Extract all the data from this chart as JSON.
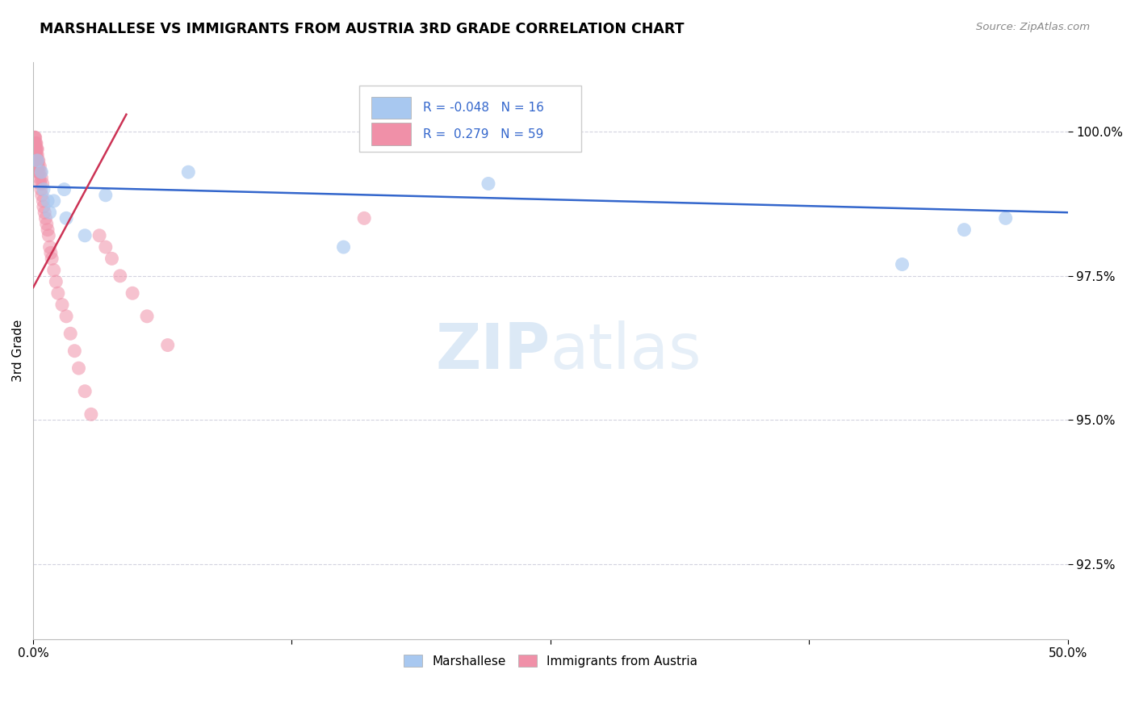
{
  "title": "MARSHALLESE VS IMMIGRANTS FROM AUSTRIA 3RD GRADE CORRELATION CHART",
  "source_text": "Source: ZipAtlas.com",
  "ylabel": "3rd Grade",
  "xlim": [
    0.0,
    50.0
  ],
  "ylim": [
    91.2,
    101.2
  ],
  "yticks": [
    92.5,
    95.0,
    97.5,
    100.0
  ],
  "ytick_labels": [
    "92.5%",
    "95.0%",
    "97.5%",
    "100.0%"
  ],
  "blue_label": "Marshallese",
  "pink_label": "Immigrants from Austria",
  "blue_R": "-0.048",
  "blue_N": "16",
  "pink_R": "0.279",
  "pink_N": "59",
  "blue_color": "#A8C8F0",
  "pink_color": "#F090A8",
  "blue_line_color": "#3366CC",
  "pink_line_color": "#CC3355",
  "watermark_zip": "ZIP",
  "watermark_atlas": "atlas",
  "blue_scatter_x": [
    0.2,
    0.4,
    0.5,
    0.7,
    0.8,
    1.0,
    1.5,
    1.6,
    2.5,
    3.5,
    7.5,
    15.0,
    22.0,
    42.0,
    45.0,
    47.0
  ],
  "blue_scatter_y": [
    99.5,
    99.3,
    99.0,
    98.8,
    98.6,
    98.8,
    99.0,
    98.5,
    98.2,
    98.9,
    99.3,
    98.0,
    99.1,
    97.7,
    98.3,
    98.5
  ],
  "pink_scatter_x": [
    0.05,
    0.07,
    0.08,
    0.09,
    0.1,
    0.1,
    0.11,
    0.12,
    0.13,
    0.14,
    0.15,
    0.15,
    0.16,
    0.17,
    0.18,
    0.19,
    0.2,
    0.2,
    0.22,
    0.24,
    0.25,
    0.26,
    0.28,
    0.3,
    0.32,
    0.34,
    0.36,
    0.38,
    0.4,
    0.42,
    0.45,
    0.48,
    0.5,
    0.55,
    0.6,
    0.65,
    0.7,
    0.75,
    0.8,
    0.85,
    0.9,
    1.0,
    1.1,
    1.2,
    1.4,
    1.6,
    1.8,
    2.0,
    2.2,
    2.5,
    2.8,
    3.2,
    3.5,
    3.8,
    4.2,
    4.8,
    5.5,
    6.5,
    16.0
  ],
  "pink_scatter_y": [
    99.9,
    99.8,
    99.9,
    99.7,
    99.8,
    99.9,
    99.7,
    99.8,
    99.6,
    99.5,
    99.7,
    99.8,
    99.6,
    99.7,
    99.5,
    99.4,
    99.6,
    99.7,
    99.5,
    99.3,
    99.4,
    99.5,
    99.3,
    99.2,
    99.4,
    99.1,
    99.3,
    99.0,
    99.2,
    98.9,
    99.1,
    98.8,
    98.7,
    98.6,
    98.5,
    98.4,
    98.3,
    98.2,
    98.0,
    97.9,
    97.8,
    97.6,
    97.4,
    97.2,
    97.0,
    96.8,
    96.5,
    96.2,
    95.9,
    95.5,
    95.1,
    98.2,
    98.0,
    97.8,
    97.5,
    97.2,
    96.8,
    96.3,
    98.5
  ]
}
